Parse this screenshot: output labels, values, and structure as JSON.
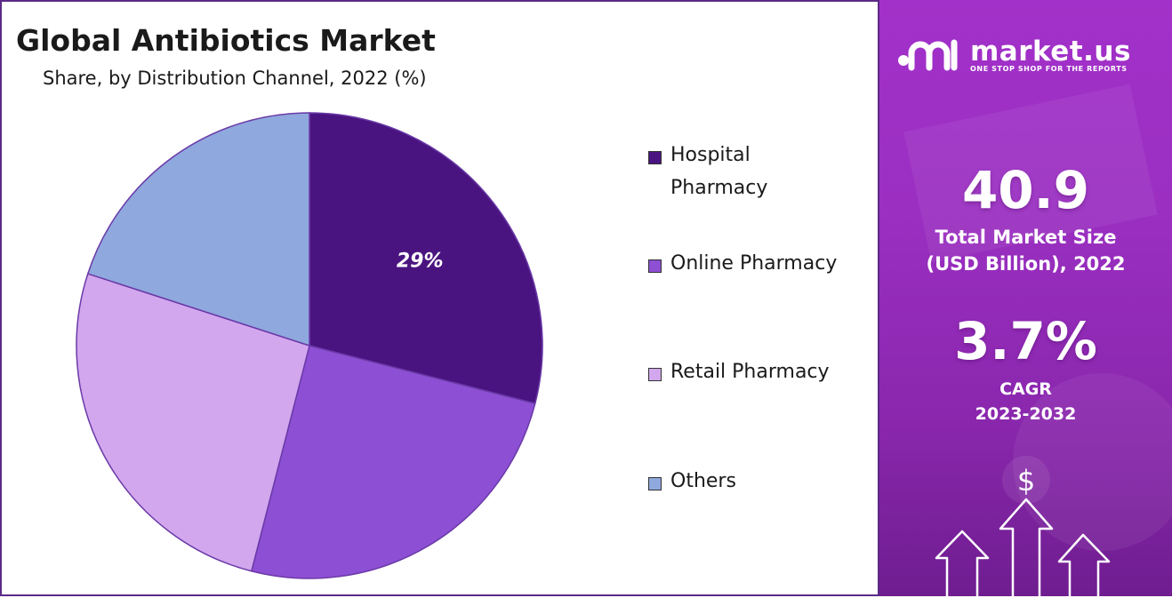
{
  "chart_data": {
    "type": "pie",
    "title": "Global Antibiotics Market",
    "subtitle": "Share, by Distribution Channel, 2022 (%)",
    "categories": [
      "Hospital Pharmacy",
      "Online Pharmacy",
      "Retail Pharmacy",
      "Others"
    ],
    "values": [
      29,
      25,
      26,
      20
    ],
    "data_labels": [
      "29%",
      "",
      "",
      ""
    ],
    "colors": [
      "#4a1480",
      "#8d4fd3",
      "#d3a7ee",
      "#8fa8dd"
    ],
    "legend_position": "right"
  },
  "legend": {
    "items": [
      {
        "label": "Hospital Pharmacy",
        "color": "#4a1480"
      },
      {
        "label": "Online Pharmacy",
        "color": "#8d4fd3"
      },
      {
        "label": "Retail Pharmacy",
        "color": "#d3a7ee"
      },
      {
        "label": "Others",
        "color": "#8fa8dd"
      }
    ]
  },
  "sidebar": {
    "brand_name": "market.us",
    "brand_tagline": "ONE STOP SHOP FOR THE REPORTS",
    "market_size_value": "40.9",
    "market_size_label_line1": "Total Market Size",
    "market_size_label_line2": "(USD Billion), 2022",
    "cagr_value": "3.7%",
    "cagr_label": "CAGR",
    "cagr_period": "2023-2032",
    "currency_symbol": "$"
  }
}
